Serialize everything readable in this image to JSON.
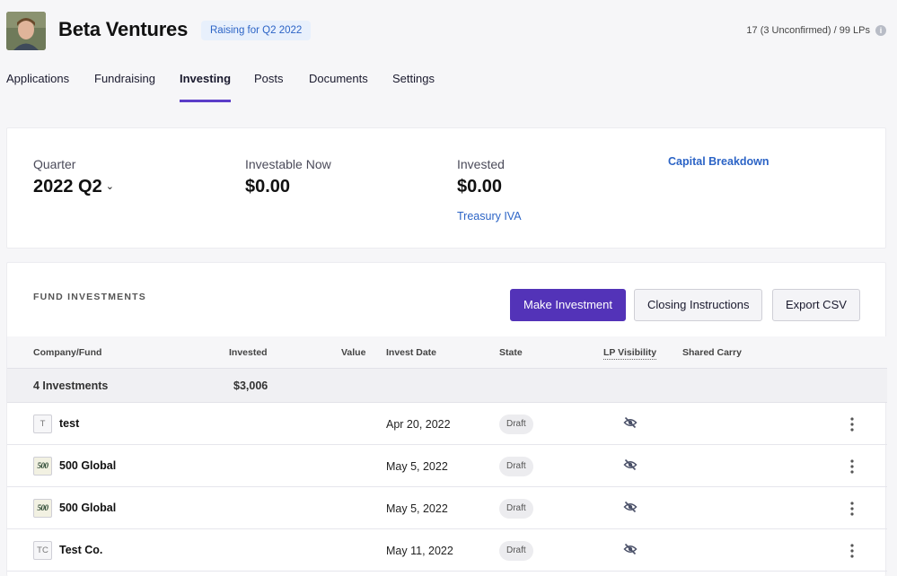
{
  "header": {
    "brand": "Beta Ventures",
    "raising_badge": "Raising for Q2 2022",
    "lp_count": "17 (3 Unconfirmed) / 99 LPs",
    "info_icon": "info-icon"
  },
  "nav": {
    "tabs": [
      {
        "label": "Applications",
        "active": false
      },
      {
        "label": "Fundraising",
        "active": false
      },
      {
        "label": "Investing",
        "active": true
      },
      {
        "label": "Posts",
        "active": false
      },
      {
        "label": "Documents",
        "active": false
      },
      {
        "label": "Settings",
        "active": false
      }
    ]
  },
  "summary": {
    "quarter_label": "Quarter",
    "quarter_value": "2022 Q2",
    "investable_label": "Investable Now",
    "investable_value": "$0.00",
    "invested_label": "Invested",
    "invested_value": "$0.00",
    "treasury_link": "Treasury IVA",
    "capital_breakdown_link": "Capital Breakdown"
  },
  "investments": {
    "title": "FUND INVESTMENTS",
    "buttons": {
      "make_investment": "Make Investment",
      "closing_instructions": "Closing Instructions",
      "export_csv": "Export CSV"
    },
    "columns": {
      "company": "Company/Fund",
      "invested": "Invested",
      "value": "Value",
      "invest_date": "Invest Date",
      "state": "State",
      "lp_visibility": "LP Visibility",
      "shared_carry": "Shared Carry"
    },
    "totals": {
      "count": "4 Investments",
      "invested": "$3,006"
    },
    "rows": [
      {
        "logo": "T",
        "logo_style": "initials",
        "name": "test",
        "date": "Apr 20, 2022",
        "state": "Draft",
        "visibility_icon": "eye-slash-icon"
      },
      {
        "logo": "500",
        "logo_style": "brand",
        "name": "500 Global",
        "date": "May 5, 2022",
        "state": "Draft",
        "visibility_icon": "eye-slash-icon"
      },
      {
        "logo": "500",
        "logo_style": "brand",
        "name": "500 Global",
        "date": "May 5, 2022",
        "state": "Draft",
        "visibility_icon": "eye-slash-icon"
      },
      {
        "logo": "TC",
        "logo_style": "initials",
        "name": "Test Co.",
        "date": "May 11, 2022",
        "state": "Draft",
        "visibility_icon": "eye-slash-icon"
      }
    ]
  },
  "colors": {
    "accent": "#5333b8",
    "link": "#2c64c6",
    "badge_bg": "#e8f0fc"
  }
}
